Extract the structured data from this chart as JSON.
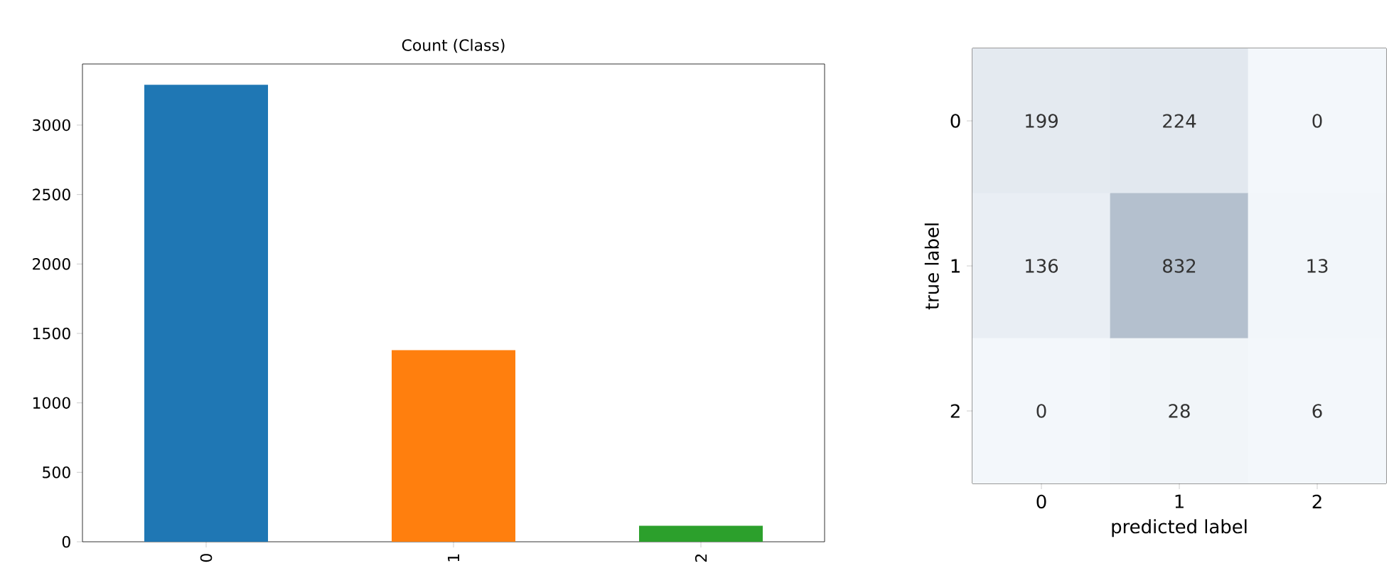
{
  "chart_data": [
    {
      "type": "bar",
      "title": "Count (Class)",
      "categories": [
        "0",
        "1",
        "2"
      ],
      "values": [
        3290,
        1380,
        115
      ],
      "colors": [
        "#1f77b4",
        "#ff7f0e",
        "#2ca02c"
      ],
      "ylim": [
        0,
        3440
      ],
      "yticks": [
        0,
        500,
        1000,
        1500,
        2000,
        2500,
        3000
      ]
    },
    {
      "type": "heatmap",
      "xlabel": "predicted label",
      "ylabel": "true label",
      "categories": [
        "0",
        "1",
        "2"
      ],
      "y_categories": [
        "0",
        "1",
        "2"
      ],
      "cells": [
        [
          199,
          224,
          0
        ],
        [
          136,
          832,
          13
        ],
        [
          0,
          28,
          6
        ]
      ],
      "data_labels": true
    }
  ]
}
